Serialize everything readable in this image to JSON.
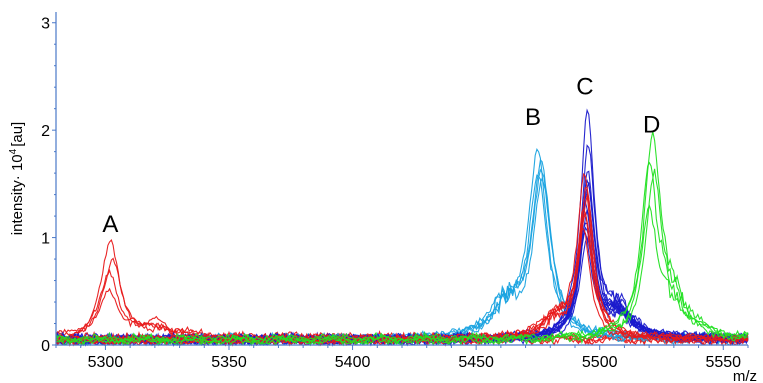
{
  "chart_data": {
    "type": "line",
    "title": "",
    "xlabel": "m/z",
    "ylabel": "intensity· 10",
    "ylabel_superscript": "4",
    "ylabel_unit": "[au]",
    "xlim": [
      5280,
      5560
    ],
    "ylim": [
      0,
      3.1
    ],
    "xticks": [
      5300,
      5350,
      5400,
      5450,
      5500,
      5550
    ],
    "yticks": [
      0,
      1,
      2,
      3
    ],
    "grid": false,
    "axis_color": "#4a78c8",
    "annotations": [
      {
        "text": "A",
        "x": 5302,
        "y": 1.05
      },
      {
        "text": "B",
        "x": 5473,
        "y": 2.05
      },
      {
        "text": "C",
        "x": 5494,
        "y": 2.33
      },
      {
        "text": "D",
        "x": 5521,
        "y": 1.98
      }
    ],
    "series_groups": [
      {
        "id": "A",
        "color": "#e8191a",
        "center": 5302,
        "width": 4.5,
        "peaks": [
          0.88,
          0.72,
          0.62,
          0.46
        ],
        "baseline": 0.06,
        "shoulder_x": 5322,
        "shoulder_h": 0.12
      },
      {
        "id": "B",
        "color": "#1aa3e0",
        "center": 5476,
        "width": 4.5,
        "peaks": [
          1.72,
          1.63,
          1.55,
          1.5,
          1.42
        ],
        "baseline": 0.05,
        "shoulder_x": 5462,
        "shoulder_h": 0.35
      },
      {
        "id": "C-blue",
        "color": "#1a1acc",
        "center": 5495,
        "width": 3.4,
        "peaks": [
          2.1,
          1.8,
          1.55,
          1.45,
          1.38,
          1.3,
          1.22,
          1.15,
          1.08,
          1.0,
          0.92,
          0.85
        ],
        "baseline": 0.05,
        "shoulder_x": 5508,
        "shoulder_h": 0.28
      },
      {
        "id": "C-red",
        "color": "#e8191a",
        "center": 5494,
        "width": 3.4,
        "peaks": [
          1.5,
          1.4,
          1.3,
          1.2,
          1.1,
          1.0
        ],
        "baseline": 0.05,
        "shoulder_x": 5482,
        "shoulder_h": 0.2
      },
      {
        "id": "D",
        "color": "#22e022",
        "center": 5521,
        "width": 4.0,
        "peaks": [
          1.83,
          1.55,
          1.43,
          1.12
        ],
        "baseline": 0.05,
        "shoulder_x": 5530,
        "shoulder_h": 0.35
      }
    ]
  }
}
